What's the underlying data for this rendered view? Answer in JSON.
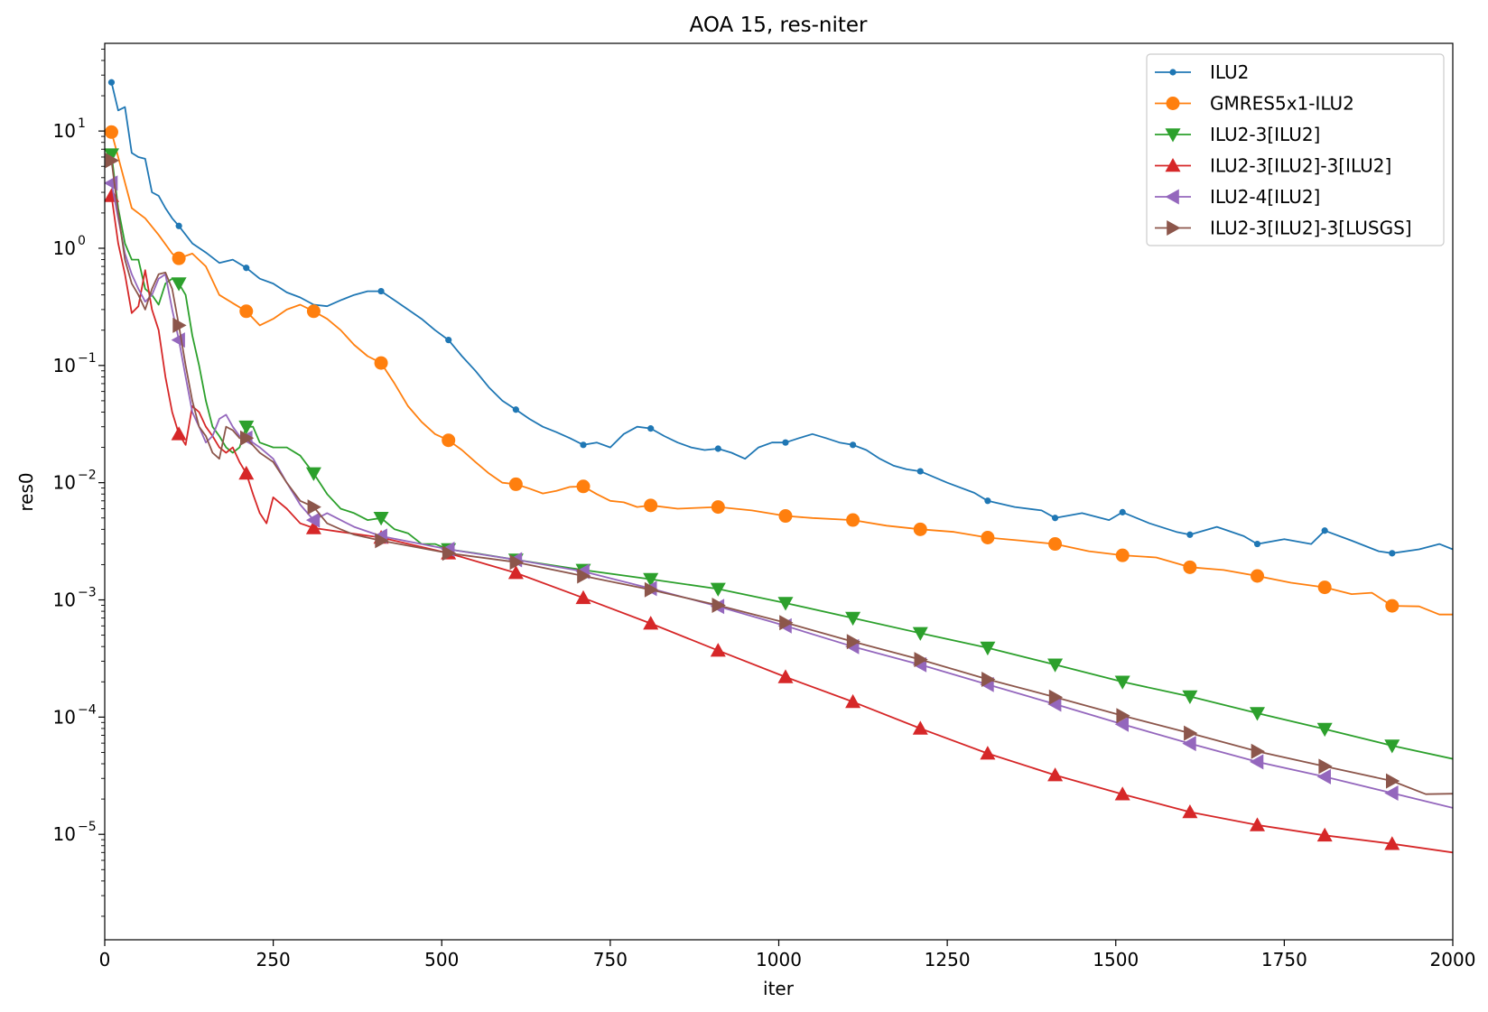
{
  "chart_data": {
    "type": "line",
    "title": "AOA 15, res-niter",
    "xlabel": "iter",
    "ylabel": "res0",
    "xlim": [
      0,
      2000
    ],
    "ylim": [
      1.26e-06,
      56
    ],
    "yscale": "log",
    "x_ticks": [
      "0",
      "250",
      "500",
      "750",
      "1000",
      "1250",
      "1500",
      "1750",
      "2000"
    ],
    "x_tick_values": [
      0,
      250,
      500,
      750,
      1000,
      1250,
      1500,
      1750,
      2000
    ],
    "y_ticks": [
      {
        "mant": "10",
        "exp": "1"
      },
      {
        "mant": "10",
        "exp": "0"
      },
      {
        "mant": "10",
        "exp": "−1"
      },
      {
        "mant": "10",
        "exp": "−2"
      },
      {
        "mant": "10",
        "exp": "−3"
      },
      {
        "mant": "10",
        "exp": "−4"
      },
      {
        "mant": "10",
        "exp": "−5"
      }
    ],
    "y_tick_values": [
      10,
      1,
      0.1,
      0.01,
      0.001,
      0.0001,
      1e-05
    ],
    "grid": false,
    "legend_position": "top-right",
    "series": [
      {
        "name": "ILU2",
        "color": "#1f77b4",
        "marker": "point",
        "x": [
          10,
          20,
          30,
          40,
          50,
          60,
          70,
          80,
          90,
          100,
          110,
          130,
          150,
          170,
          190,
          210,
          230,
          250,
          270,
          290,
          310,
          330,
          350,
          370,
          390,
          410,
          430,
          450,
          470,
          490,
          510,
          530,
          550,
          570,
          590,
          610,
          630,
          650,
          670,
          690,
          710,
          730,
          750,
          770,
          790,
          810,
          830,
          850,
          870,
          890,
          910,
          930,
          950,
          970,
          990,
          1010,
          1030,
          1050,
          1070,
          1090,
          1110,
          1130,
          1150,
          1170,
          1190,
          1210,
          1250,
          1290,
          1310,
          1350,
          1390,
          1410,
          1450,
          1490,
          1510,
          1550,
          1590,
          1610,
          1650,
          1690,
          1710,
          1750,
          1790,
          1810,
          1850,
          1890,
          1910,
          1950,
          1980,
          2000
        ],
        "y": [
          26,
          15,
          16,
          6.5,
          6,
          5.8,
          3,
          2.8,
          2.2,
          1.8,
          1.55,
          1.1,
          0.92,
          0.75,
          0.8,
          0.68,
          0.55,
          0.5,
          0.42,
          0.38,
          0.33,
          0.32,
          0.36,
          0.4,
          0.43,
          0.43,
          0.36,
          0.3,
          0.25,
          0.2,
          0.165,
          0.12,
          0.09,
          0.065,
          0.05,
          0.042,
          0.035,
          0.03,
          0.027,
          0.024,
          0.021,
          0.022,
          0.02,
          0.026,
          0.03,
          0.029,
          0.025,
          0.022,
          0.02,
          0.019,
          0.0195,
          0.018,
          0.016,
          0.02,
          0.022,
          0.022,
          0.024,
          0.026,
          0.024,
          0.022,
          0.021,
          0.019,
          0.016,
          0.014,
          0.013,
          0.0125,
          0.01,
          0.0082,
          0.007,
          0.0062,
          0.0058,
          0.005,
          0.0055,
          0.0048,
          0.0056,
          0.0045,
          0.0038,
          0.0036,
          0.0042,
          0.0035,
          0.003,
          0.0033,
          0.003,
          0.0039,
          0.0032,
          0.0026,
          0.0025,
          0.0027,
          0.003,
          0.0027
        ],
        "marker_x": [
          10,
          110,
          210,
          410,
          510,
          610,
          710,
          810,
          910,
          1010,
          1110,
          1210,
          1310,
          1410,
          1510,
          1610,
          1710,
          1810,
          1910
        ],
        "marker_y": [
          26,
          1.55,
          0.68,
          0.43,
          0.165,
          0.042,
          0.021,
          0.029,
          0.0195,
          0.022,
          0.021,
          0.0125,
          0.007,
          0.005,
          0.0056,
          0.0036,
          0.003,
          0.0039,
          0.0025
        ]
      },
      {
        "name": "GMRES5x1-ILU2",
        "color": "#ff7f0e",
        "marker": "circle",
        "x": [
          10,
          20,
          40,
          60,
          80,
          100,
          110,
          130,
          150,
          170,
          190,
          210,
          230,
          250,
          270,
          290,
          310,
          330,
          350,
          370,
          390,
          410,
          430,
          450,
          470,
          490,
          510,
          530,
          550,
          570,
          590,
          610,
          630,
          650,
          670,
          690,
          710,
          730,
          750,
          770,
          790,
          810,
          850,
          910,
          960,
          1010,
          1050,
          1110,
          1160,
          1210,
          1260,
          1310,
          1360,
          1410,
          1460,
          1510,
          1560,
          1610,
          1660,
          1710,
          1760,
          1810,
          1850,
          1880,
          1910,
          1950,
          1980,
          2000
        ],
        "y": [
          9.8,
          6,
          2.2,
          1.8,
          1.3,
          0.9,
          0.82,
          0.9,
          0.7,
          0.4,
          0.34,
          0.29,
          0.22,
          0.25,
          0.3,
          0.33,
          0.29,
          0.25,
          0.2,
          0.15,
          0.12,
          0.105,
          0.07,
          0.045,
          0.033,
          0.026,
          0.023,
          0.019,
          0.015,
          0.012,
          0.01,
          0.0097,
          0.0089,
          0.0081,
          0.0085,
          0.0092,
          0.0093,
          0.008,
          0.007,
          0.0068,
          0.0062,
          0.0064,
          0.006,
          0.0062,
          0.0058,
          0.0052,
          0.005,
          0.0048,
          0.0043,
          0.004,
          0.0038,
          0.0034,
          0.0032,
          0.003,
          0.0026,
          0.0024,
          0.0023,
          0.0019,
          0.0018,
          0.0016,
          0.0014,
          0.00128,
          0.00112,
          0.00115,
          0.00089,
          0.00088,
          0.00075,
          0.00075
        ],
        "marker_x": [
          10,
          110,
          210,
          310,
          410,
          510,
          610,
          710,
          810,
          910,
          1010,
          1110,
          1210,
          1310,
          1410,
          1510,
          1610,
          1710,
          1810,
          1910
        ],
        "marker_y": [
          9.8,
          0.82,
          0.29,
          0.29,
          0.105,
          0.023,
          0.0097,
          0.0093,
          0.0064,
          0.0062,
          0.0052,
          0.0048,
          0.004,
          0.0034,
          0.003,
          0.0024,
          0.0019,
          0.0016,
          0.00128,
          0.00089
        ]
      },
      {
        "name": "ILU2-3[ILU2]",
        "color": "#2ca02c",
        "marker": "triangle-down",
        "x": [
          10,
          20,
          30,
          40,
          50,
          60,
          70,
          80,
          90,
          100,
          110,
          120,
          130,
          140,
          150,
          160,
          170,
          180,
          190,
          200,
          210,
          220,
          230,
          250,
          270,
          290,
          310,
          330,
          350,
          370,
          390,
          410,
          430,
          450,
          470,
          490,
          510,
          550,
          610,
          710,
          810,
          910,
          1010,
          1110,
          1210,
          1310,
          1410,
          1510,
          1610,
          1710,
          1810,
          1910,
          2000
        ],
        "y": [
          6.3,
          2.2,
          1.1,
          0.8,
          0.8,
          0.45,
          0.4,
          0.33,
          0.5,
          0.55,
          0.5,
          0.4,
          0.18,
          0.1,
          0.05,
          0.03,
          0.025,
          0.02,
          0.018,
          0.02,
          0.03,
          0.03,
          0.022,
          0.02,
          0.02,
          0.017,
          0.012,
          0.008,
          0.006,
          0.0055,
          0.0048,
          0.005,
          0.004,
          0.0037,
          0.003,
          0.003,
          0.0027,
          0.0025,
          0.0022,
          0.0018,
          0.0015,
          0.00124,
          0.00094,
          0.0007,
          0.00052,
          0.00039,
          0.00028,
          0.0002,
          0.00015,
          0.000108,
          7.9e-05,
          5.7e-05,
          4.4e-05
        ],
        "marker_x": [
          10,
          110,
          210,
          310,
          410,
          510,
          610,
          710,
          810,
          910,
          1010,
          1110,
          1210,
          1310,
          1410,
          1510,
          1610,
          1710,
          1810,
          1910
        ],
        "marker_y": [
          6.3,
          0.5,
          0.03,
          0.012,
          0.005,
          0.0027,
          0.0022,
          0.0018,
          0.0015,
          0.00124,
          0.00094,
          0.0007,
          0.00052,
          0.00039,
          0.00028,
          0.0002,
          0.00015,
          0.000108,
          7.9e-05,
          5.7e-05
        ]
      },
      {
        "name": "ILU2-3[ILU2]-3[ILU2]",
        "color": "#d62728",
        "marker": "triangle-up",
        "x": [
          10,
          20,
          30,
          40,
          50,
          60,
          70,
          80,
          90,
          100,
          110,
          120,
          130,
          140,
          150,
          160,
          170,
          180,
          190,
          200,
          210,
          220,
          230,
          240,
          250,
          270,
          290,
          310,
          350,
          410,
          510,
          610,
          710,
          810,
          910,
          1010,
          1110,
          1210,
          1310,
          1410,
          1510,
          1610,
          1710,
          1810,
          1910,
          2000
        ],
        "y": [
          2.8,
          1.1,
          0.6,
          0.28,
          0.32,
          0.65,
          0.3,
          0.2,
          0.08,
          0.04,
          0.026,
          0.021,
          0.045,
          0.04,
          0.03,
          0.025,
          0.02,
          0.018,
          0.02,
          0.015,
          0.012,
          0.008,
          0.0055,
          0.0045,
          0.0075,
          0.006,
          0.0045,
          0.0041,
          0.0038,
          0.0034,
          0.0025,
          0.0017,
          0.00104,
          0.00063,
          0.00037,
          0.00022,
          0.000135,
          8e-05,
          4.9e-05,
          3.2e-05,
          2.2e-05,
          1.55e-05,
          1.2e-05,
          9.8e-06,
          8.3e-06,
          7e-06
        ],
        "marker_x": [
          10,
          110,
          210,
          310,
          410,
          510,
          610,
          710,
          810,
          910,
          1010,
          1110,
          1210,
          1310,
          1410,
          1510,
          1610,
          1710,
          1810,
          1910
        ],
        "marker_y": [
          2.8,
          0.026,
          0.012,
          0.0041,
          0.0034,
          0.0025,
          0.0017,
          0.00104,
          0.00063,
          0.00037,
          0.00022,
          0.000135,
          8e-05,
          4.9e-05,
          3.2e-05,
          2.2e-05,
          1.55e-05,
          1.2e-05,
          9.8e-06,
          8.3e-06
        ]
      },
      {
        "name": "ILU2-4[ILU2]",
        "color": "#9467bd",
        "marker": "triangle-left",
        "x": [
          10,
          20,
          30,
          40,
          50,
          60,
          70,
          80,
          90,
          100,
          110,
          120,
          130,
          140,
          150,
          160,
          170,
          180,
          190,
          200,
          210,
          230,
          250,
          270,
          290,
          310,
          330,
          350,
          370,
          410,
          510,
          610,
          710,
          810,
          910,
          1010,
          1110,
          1210,
          1310,
          1410,
          1510,
          1610,
          1710,
          1810,
          1910,
          2000
        ],
        "y": [
          3.6,
          1.8,
          0.9,
          0.6,
          0.45,
          0.35,
          0.4,
          0.55,
          0.6,
          0.3,
          0.165,
          0.08,
          0.04,
          0.03,
          0.022,
          0.025,
          0.035,
          0.038,
          0.03,
          0.025,
          0.024,
          0.02,
          0.016,
          0.01,
          0.0065,
          0.0048,
          0.0055,
          0.0048,
          0.0042,
          0.0035,
          0.0027,
          0.0022,
          0.00175,
          0.00125,
          0.00088,
          0.0006,
          0.0004,
          0.00028,
          0.00019,
          0.000129,
          8.7e-05,
          5.95e-05,
          4.15e-05,
          3.1e-05,
          2.25e-05,
          1.68e-05
        ],
        "marker_x": [
          10,
          110,
          210,
          310,
          410,
          510,
          610,
          710,
          810,
          910,
          1010,
          1110,
          1210,
          1310,
          1410,
          1510,
          1610,
          1710,
          1810,
          1910
        ],
        "marker_y": [
          3.6,
          0.165,
          0.024,
          0.0048,
          0.0035,
          0.0027,
          0.0022,
          0.00175,
          0.00125,
          0.00088,
          0.0006,
          0.0004,
          0.00028,
          0.00019,
          0.000129,
          8.7e-05,
          5.95e-05,
          4.15e-05,
          3.1e-05,
          2.25e-05
        ]
      },
      {
        "name": "ILU2-3[ILU2]-3[LUSGS]",
        "color": "#8c564b",
        "marker": "triangle-right",
        "x": [
          10,
          20,
          30,
          40,
          50,
          60,
          70,
          80,
          90,
          100,
          110,
          120,
          130,
          140,
          150,
          160,
          170,
          180,
          190,
          200,
          210,
          230,
          250,
          270,
          290,
          310,
          330,
          350,
          370,
          410,
          510,
          610,
          710,
          810,
          910,
          1010,
          1110,
          1210,
          1310,
          1410,
          1510,
          1610,
          1710,
          1810,
          1910,
          1960,
          2000
        ],
        "y": [
          5.6,
          2,
          0.8,
          0.5,
          0.4,
          0.3,
          0.45,
          0.6,
          0.62,
          0.45,
          0.22,
          0.1,
          0.05,
          0.03,
          0.025,
          0.018,
          0.016,
          0.03,
          0.028,
          0.024,
          0.024,
          0.018,
          0.015,
          0.01,
          0.007,
          0.0062,
          0.0045,
          0.004,
          0.0036,
          0.0032,
          0.0025,
          0.0021,
          0.0016,
          0.00122,
          0.0009,
          0.00064,
          0.00044,
          0.00031,
          0.00021,
          0.000148,
          0.000103,
          7.3e-05,
          5.1e-05,
          3.8e-05,
          2.85e-05,
          2.2e-05,
          2.22e-05
        ],
        "marker_x": [
          10,
          110,
          210,
          310,
          410,
          510,
          610,
          710,
          810,
          910,
          1010,
          1110,
          1210,
          1310,
          1410,
          1510,
          1610,
          1710,
          1810,
          1910
        ],
        "marker_y": [
          5.6,
          0.22,
          0.024,
          0.0062,
          0.0032,
          0.0025,
          0.0021,
          0.0016,
          0.00122,
          0.0009,
          0.00064,
          0.00044,
          0.00031,
          0.00021,
          0.000148,
          0.000103,
          7.3e-05,
          5.1e-05,
          3.8e-05,
          2.85e-05
        ]
      }
    ]
  }
}
